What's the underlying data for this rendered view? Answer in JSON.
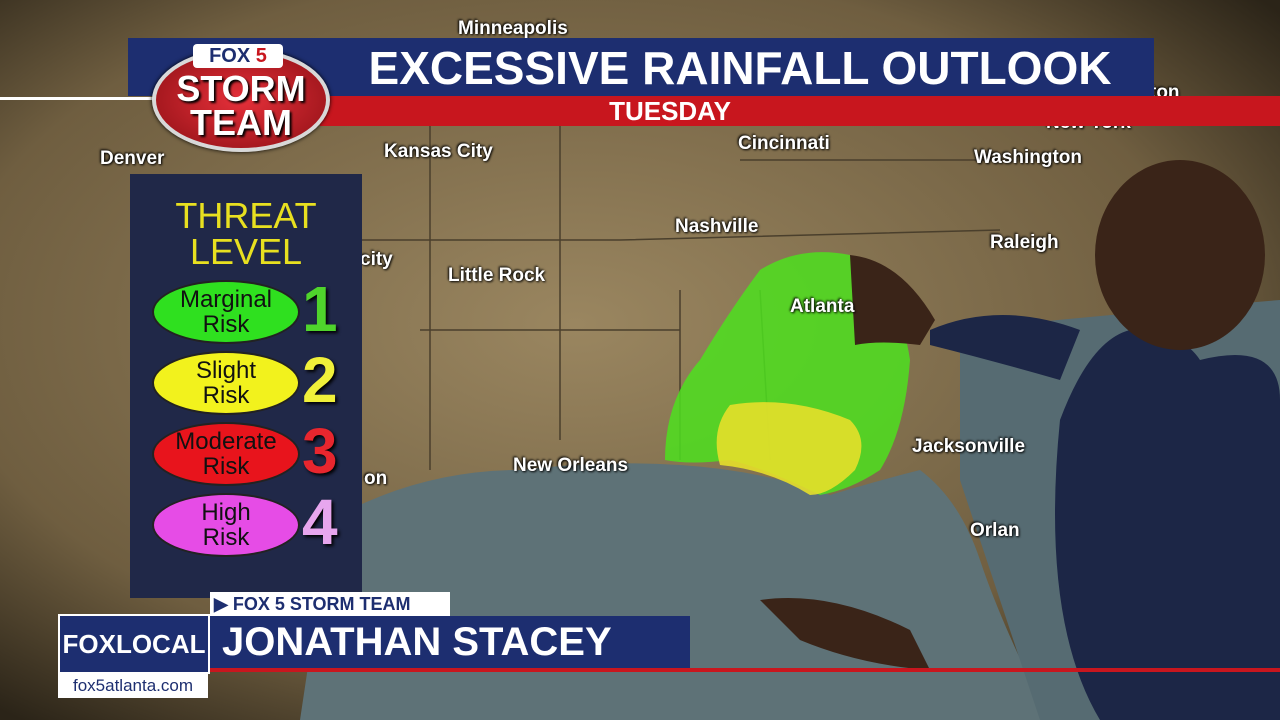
{
  "logo": {
    "network": "FOX",
    "channel": "5",
    "line1": "STORM",
    "line2": "TEAM"
  },
  "header": {
    "title": "EXCESSIVE RAINFALL OUTLOOK",
    "subtitle": "TUESDAY"
  },
  "map": {
    "cities": [
      "Minneapolis",
      "Denver",
      "Kansas City",
      "Cincinnati",
      "Washington",
      "New York",
      "ton",
      "Nashville",
      "Raleigh",
      "city",
      "Little Rock",
      "Atlanta",
      "New Orleans",
      "Jacksonville",
      "on",
      "Orlan"
    ]
  },
  "legend": {
    "title": [
      "THREAT",
      "LEVEL"
    ],
    "levels": [
      {
        "label": [
          "Marginal",
          "Risk"
        ],
        "number": "1",
        "color": "#2fe01f",
        "number_color": "#4fd42c"
      },
      {
        "label": [
          "Slight",
          "Risk"
        ],
        "number": "2",
        "color": "#f2f21d",
        "number_color": "#f0f03a"
      },
      {
        "label": [
          "Moderate",
          "Risk"
        ],
        "number": "3",
        "color": "#e8141c",
        "number_color": "#e8262e"
      },
      {
        "label": [
          "High",
          "Risk"
        ],
        "number": "4",
        "color": "#e64ce6",
        "number_color": "#e7a6ee"
      }
    ]
  },
  "lower_third": {
    "tag": "FOX 5 STORM TEAM",
    "name": "JONATHAN STACEY",
    "brand": "FOXLOCAL",
    "website": "fox5atlanta.com"
  }
}
